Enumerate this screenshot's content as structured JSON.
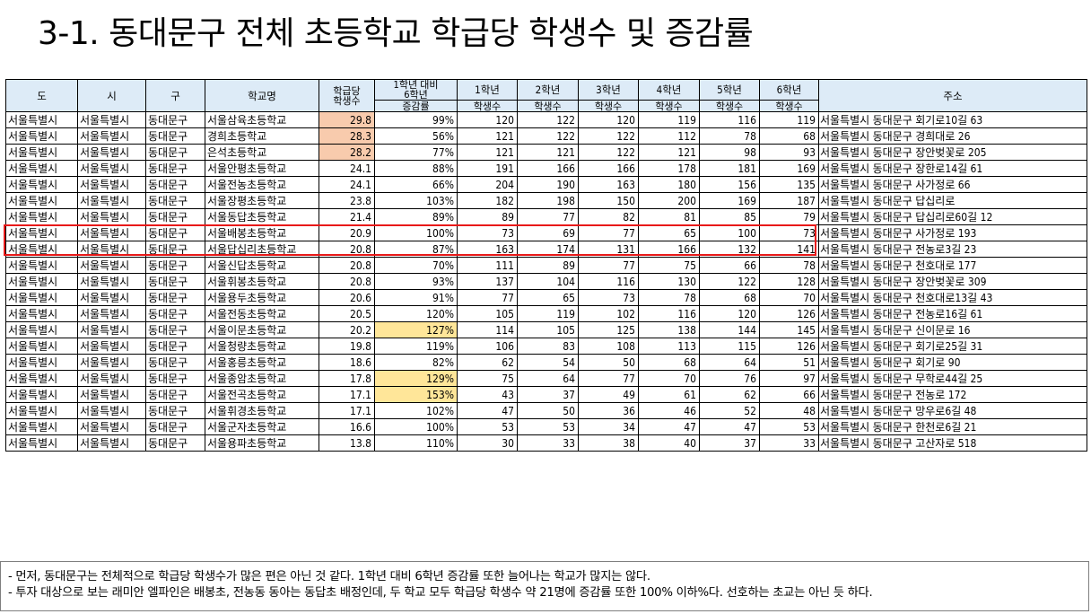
{
  "title": "3-1. 동대문구 전체 초등학교 학급당 학생수 및 증감률",
  "table": {
    "headers": {
      "province": "도",
      "city": "시",
      "district": "구",
      "school": "학교명",
      "per_class_top": "학급당",
      "per_class_bottom": "학생수",
      "change_line1": "1학년 대비",
      "change_line2": "6학년",
      "change_sub": "증감률",
      "grade1": "1학년",
      "grade2": "2학년",
      "grade3": "3학년",
      "grade4": "4학년",
      "grade5": "5학년",
      "grade6": "6학년",
      "students_sub": "학생수",
      "address": "주소"
    },
    "rows": [
      {
        "province": "서울특별시",
        "city": "서울특별시",
        "district": "동대문구",
        "school": "서울삼육초등학교",
        "per_class": "29.8",
        "change": "99%",
        "g1": "120",
        "g2": "122",
        "g3": "120",
        "g4": "119",
        "g5": "116",
        "g6": "119",
        "address": "서울특별시 동대문구 회기로10길 63",
        "hl_per_class": "orange",
        "hl_change": ""
      },
      {
        "province": "서울특별시",
        "city": "서울특별시",
        "district": "동대문구",
        "school": "경희초등학교",
        "per_class": "28.3",
        "change": "56%",
        "g1": "121",
        "g2": "122",
        "g3": "122",
        "g4": "112",
        "g5": "78",
        "g6": "68",
        "address": "서울특별시 동대문구 경희대로 26",
        "hl_per_class": "orange",
        "hl_change": ""
      },
      {
        "province": "서울특별시",
        "city": "서울특별시",
        "district": "동대문구",
        "school": "은석초등학교",
        "per_class": "28.2",
        "change": "77%",
        "g1": "121",
        "g2": "121",
        "g3": "122",
        "g4": "121",
        "g5": "98",
        "g6": "93",
        "address": "서울특별시 동대문구 장안벚꽃로 205",
        "hl_per_class": "orange",
        "hl_change": ""
      },
      {
        "province": "서울특별시",
        "city": "서울특별시",
        "district": "동대문구",
        "school": "서울안평초등학교",
        "per_class": "24.1",
        "change": "88%",
        "g1": "191",
        "g2": "166",
        "g3": "166",
        "g4": "178",
        "g5": "181",
        "g6": "169",
        "address": "서울특별시 동대문구 장한로14길 61",
        "hl_per_class": "",
        "hl_change": ""
      },
      {
        "province": "서울특별시",
        "city": "서울특별시",
        "district": "동대문구",
        "school": "서울전농초등학교",
        "per_class": "24.1",
        "change": "66%",
        "g1": "204",
        "g2": "190",
        "g3": "163",
        "g4": "180",
        "g5": "156",
        "g6": "135",
        "address": "서울특별시 동대문구 사가정로 66",
        "hl_per_class": "",
        "hl_change": ""
      },
      {
        "province": "서울특별시",
        "city": "서울특별시",
        "district": "동대문구",
        "school": "서울장평초등학교",
        "per_class": "23.8",
        "change": "103%",
        "g1": "182",
        "g2": "198",
        "g3": "150",
        "g4": "200",
        "g5": "169",
        "g6": "187",
        "address": "서울특별시 동대문구 답십리로",
        "hl_per_class": "",
        "hl_change": ""
      },
      {
        "province": "서울특별시",
        "city": "서울특별시",
        "district": "동대문구",
        "school": "서울동답초등학교",
        "per_class": "21.4",
        "change": "89%",
        "g1": "89",
        "g2": "77",
        "g3": "82",
        "g4": "81",
        "g5": "85",
        "g6": "79",
        "address": "서울특별시 동대문구 답십리로60길 12",
        "hl_per_class": "",
        "hl_change": ""
      },
      {
        "province": "서울특별시",
        "city": "서울특별시",
        "district": "동대문구",
        "school": "서울배봉초등학교",
        "per_class": "20.9",
        "change": "100%",
        "g1": "73",
        "g2": "69",
        "g3": "77",
        "g4": "65",
        "g5": "100",
        "g6": "73",
        "address": "서울특별시 동대문구 사가정로 193",
        "hl_per_class": "",
        "hl_change": ""
      },
      {
        "province": "서울특별시",
        "city": "서울특별시",
        "district": "동대문구",
        "school": "서울답십리초등학교",
        "per_class": "20.8",
        "change": "87%",
        "g1": "163",
        "g2": "174",
        "g3": "131",
        "g4": "166",
        "g5": "132",
        "g6": "141",
        "address": "서울특별시 동대문구 전농로3길 23",
        "hl_per_class": "",
        "hl_change": ""
      },
      {
        "province": "서울특별시",
        "city": "서울특별시",
        "district": "동대문구",
        "school": "서울신답초등학교",
        "per_class": "20.8",
        "change": "70%",
        "g1": "111",
        "g2": "89",
        "g3": "77",
        "g4": "75",
        "g5": "66",
        "g6": "78",
        "address": "서울특별시 동대문구 천호대로 177",
        "hl_per_class": "",
        "hl_change": ""
      },
      {
        "province": "서울특별시",
        "city": "서울특별시",
        "district": "동대문구",
        "school": "서울휘봉초등학교",
        "per_class": "20.8",
        "change": "93%",
        "g1": "137",
        "g2": "104",
        "g3": "116",
        "g4": "130",
        "g5": "122",
        "g6": "128",
        "address": "서울특별시 동대문구 장안벚꽃로 309",
        "hl_per_class": "",
        "hl_change": ""
      },
      {
        "province": "서울특별시",
        "city": "서울특별시",
        "district": "동대문구",
        "school": "서울용두초등학교",
        "per_class": "20.6",
        "change": "91%",
        "g1": "77",
        "g2": "65",
        "g3": "73",
        "g4": "78",
        "g5": "68",
        "g6": "70",
        "address": "서울특별시 동대문구 천호대로13길 43",
        "hl_per_class": "",
        "hl_change": ""
      },
      {
        "province": "서울특별시",
        "city": "서울특별시",
        "district": "동대문구",
        "school": "서울전동초등학교",
        "per_class": "20.5",
        "change": "120%",
        "g1": "105",
        "g2": "119",
        "g3": "102",
        "g4": "116",
        "g5": "120",
        "g6": "126",
        "address": "서울특별시 동대문구 전농로16길 61",
        "hl_per_class": "",
        "hl_change": ""
      },
      {
        "province": "서울특별시",
        "city": "서울특별시",
        "district": "동대문구",
        "school": "서울이문초등학교",
        "per_class": "20.2",
        "change": "127%",
        "g1": "114",
        "g2": "105",
        "g3": "125",
        "g4": "138",
        "g5": "144",
        "g6": "145",
        "address": "서울특별시 동대문구 신이문로 16",
        "hl_per_class": "",
        "hl_change": "yellow"
      },
      {
        "province": "서울특별시",
        "city": "서울특별시",
        "district": "동대문구",
        "school": "서울청량초등학교",
        "per_class": "19.8",
        "change": "119%",
        "g1": "106",
        "g2": "83",
        "g3": "108",
        "g4": "113",
        "g5": "115",
        "g6": "126",
        "address": "서울특별시 동대문구 회기로25길 31",
        "hl_per_class": "",
        "hl_change": ""
      },
      {
        "province": "서울특별시",
        "city": "서울특별시",
        "district": "동대문구",
        "school": "서울홍릉초등학교",
        "per_class": "18.6",
        "change": "82%",
        "g1": "62",
        "g2": "54",
        "g3": "50",
        "g4": "68",
        "g5": "64",
        "g6": "51",
        "address": "서울특별시 동대문구 회기로 90",
        "hl_per_class": "",
        "hl_change": ""
      },
      {
        "province": "서울특별시",
        "city": "서울특별시",
        "district": "동대문구",
        "school": "서울종암초등학교",
        "per_class": "17.8",
        "change": "129%",
        "g1": "75",
        "g2": "64",
        "g3": "77",
        "g4": "70",
        "g5": "76",
        "g6": "97",
        "address": "서울특별시 동대문구 무학로44길 25",
        "hl_per_class": "",
        "hl_change": "yellow"
      },
      {
        "province": "서울특별시",
        "city": "서울특별시",
        "district": "동대문구",
        "school": "서울전곡초등학교",
        "per_class": "17.1",
        "change": "153%",
        "g1": "43",
        "g2": "37",
        "g3": "49",
        "g4": "61",
        "g5": "62",
        "g6": "66",
        "address": "서울특별시 동대문구 전농로 172",
        "hl_per_class": "",
        "hl_change": "yellow"
      },
      {
        "province": "서울특별시",
        "city": "서울특별시",
        "district": "동대문구",
        "school": "서울휘경초등학교",
        "per_class": "17.1",
        "change": "102%",
        "g1": "47",
        "g2": "50",
        "g3": "36",
        "g4": "46",
        "g5": "52",
        "g6": "48",
        "address": "서울특별시 동대문구 망우로6길 48",
        "hl_per_class": "",
        "hl_change": ""
      },
      {
        "province": "서울특별시",
        "city": "서울특별시",
        "district": "동대문구",
        "school": "서울군자초등학교",
        "per_class": "16.6",
        "change": "100%",
        "g1": "53",
        "g2": "53",
        "g3": "34",
        "g4": "47",
        "g5": "47",
        "g6": "53",
        "address": "서울특별시 동대문구 한천로6길 21",
        "hl_per_class": "",
        "hl_change": ""
      },
      {
        "province": "서울특별시",
        "city": "서울특별시",
        "district": "동대문구",
        "school": "서울용파초등학교",
        "per_class": "13.8",
        "change": "110%",
        "g1": "30",
        "g2": "33",
        "g3": "38",
        "g4": "40",
        "g5": "37",
        "g6": "33",
        "address": "서울특별시 동대문구 고산자로 518",
        "hl_per_class": "",
        "hl_change": ""
      }
    ]
  },
  "colors": {
    "header_bg": "#ddebf7",
    "orange": "#f8cbad",
    "yellow": "#ffe699",
    "highlight_border": "#e81919"
  },
  "notes": [
    "- 먼저, 동대문구는 전체적으로 학급당 학생수가 많은 편은 아닌 것 같다. 1학년 대비 6학년 증감률 또한 늘어나는 학교가 많지는 않다.",
    "- 투자 대상으로 보는 래미안 엘파인은 배봉초, 전농동 동아는 동답초 배정인데, 두 학교 모두 학급당 학생수 약 21명에 증감률 또한 100% 이하%다. 선호하는 초교는 아닌 듯 하다."
  ]
}
